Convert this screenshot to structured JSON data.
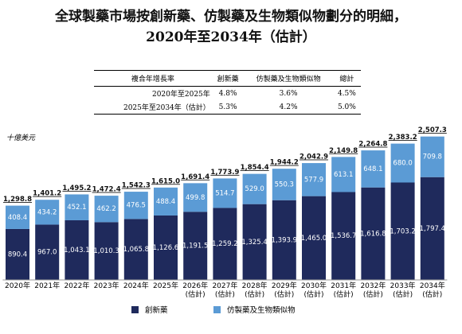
{
  "chart_data": {
    "type": "stacked-bar",
    "title": "全球製藥市場按創新藥、仿製藥及生物類似物劃分的明細，\n2020年至2034年（估計）",
    "cagr_table": {
      "header": [
        "複合年增長率",
        "創新藥",
        "仿製藥及生物類似物",
        "總計"
      ],
      "rows": [
        [
          "2020年至2025年",
          "4.8%",
          "3.6%",
          "4.5%"
        ],
        [
          "2025年至2034年（估計）",
          "5.3%",
          "4.2%",
          "5.0%"
        ]
      ]
    },
    "y_unit": "十億美元",
    "categories": [
      "2020年",
      "2021年",
      "2022年",
      "2023年",
      "2024年",
      "2025年",
      "2026年\n(估計)",
      "2027年\n(估計)",
      "2028年\n(估計)",
      "2029年\n(估計)",
      "2030年\n(估計)",
      "2031年\n(估計)",
      "2032年\n(估計)",
      "2033年\n(估計)",
      "2034年\n(估計)"
    ],
    "ylim": [
      0,
      2600
    ],
    "series": [
      {
        "name": "創新藥",
        "color": "#1f2a5c",
        "values": [
          890.4,
          967.0,
          1043.1,
          1010.3,
          1065.8,
          1126.6,
          1191.5,
          1259.2,
          1325.4,
          1393.9,
          1465.0,
          1536.7,
          1616.8,
          1703.2,
          1797.4
        ],
        "value_labels": [
          "890.4",
          "967.0",
          "1,043.1",
          "1,010.3",
          "1,065.8",
          "1,126.6",
          "1,191.5",
          "1,259.2",
          "1,325.4",
          "1,393.9",
          "1,465.0",
          "1,536.7",
          "1,616.8",
          "1,703.2",
          "1,797.4"
        ]
      },
      {
        "name": "仿製藥及生物類似物",
        "color": "#5b9bd5",
        "values": [
          408.4,
          434.2,
          452.1,
          462.2,
          476.5,
          488.4,
          499.8,
          514.7,
          529.0,
          550.3,
          577.9,
          613.1,
          648.1,
          680.0,
          709.8
        ],
        "value_labels": [
          "408.4",
          "434.2",
          "452.1",
          "462.2",
          "476.5",
          "488.4",
          "499.8",
          "514.7",
          "529.0",
          "550.3",
          "577.9",
          "613.1",
          "648.1",
          "680.0",
          "709.8"
        ]
      }
    ],
    "totals": {
      "values": [
        1298.8,
        1401.2,
        1495.2,
        1472.4,
        1542.3,
        1615.0,
        1691.4,
        1773.9,
        1854.4,
        1944.2,
        2042.9,
        2149.8,
        2264.8,
        2383.2,
        2507.3
      ],
      "value_labels": [
        "1,298.8",
        "1,401.2",
        "1,495.2",
        "1,472.4",
        "1,542.3",
        "1,615.0",
        "1,691.4",
        "1,773.9",
        "1,854.4",
        "1,944.2",
        "2,042.9",
        "2,149.8",
        "2,264.8",
        "2,383.2",
        "2,507.3"
      ]
    }
  }
}
